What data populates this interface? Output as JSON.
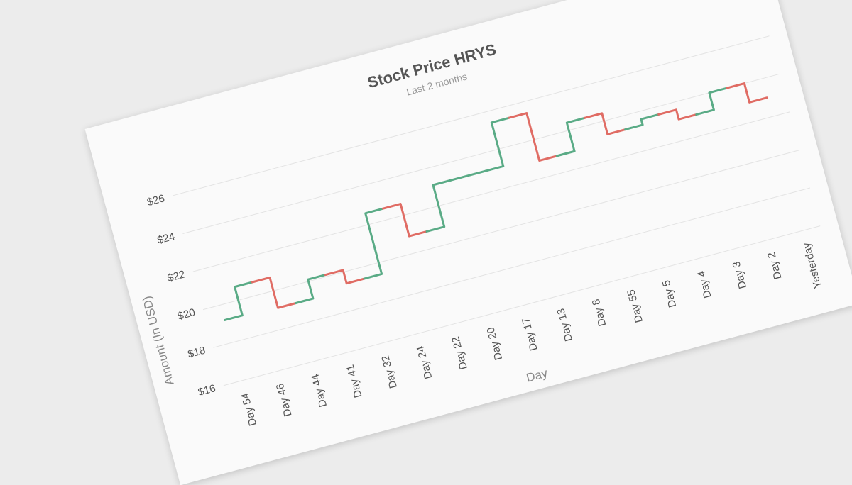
{
  "chart_data": {
    "type": "line",
    "line_shape": "step",
    "title": "Stock Price HRYS",
    "subtitle": "Last 2 months",
    "xlabel": "Day",
    "ylabel": "Amount (In USD)",
    "categories": [
      "Day 54",
      "Day 46",
      "Day 44",
      "Day 41",
      "Day 32",
      "Day 24",
      "Day 22",
      "Day 20",
      "Day 17",
      "Day 13",
      "Day 8",
      "Day 55",
      "Day 5",
      "Day 4",
      "Day 3",
      "Day 2",
      "Yesterday"
    ],
    "series": [
      {
        "values": [
          19.2,
          20.7,
          19.1,
          20.1,
          19.4,
          22.6,
          20.9,
          23.1,
          23.1,
          25.4,
          22.9,
          24.4,
          23.3,
          23.6,
          23.1,
          24.0,
          23.0
        ]
      }
    ],
    "ylim": [
      16,
      27
    ],
    "yticks": [
      16,
      18,
      20,
      22,
      24,
      26
    ],
    "ytick_labels": [
      "$16",
      "$18",
      "$20",
      "$22",
      "$24",
      "$26"
    ],
    "grid": true,
    "colors": {
      "increase": "#5aab86",
      "decrease": "#e06c64",
      "grid": "#e3e3e3",
      "card_background": "#fafafa",
      "page_background": "#ececec"
    }
  }
}
